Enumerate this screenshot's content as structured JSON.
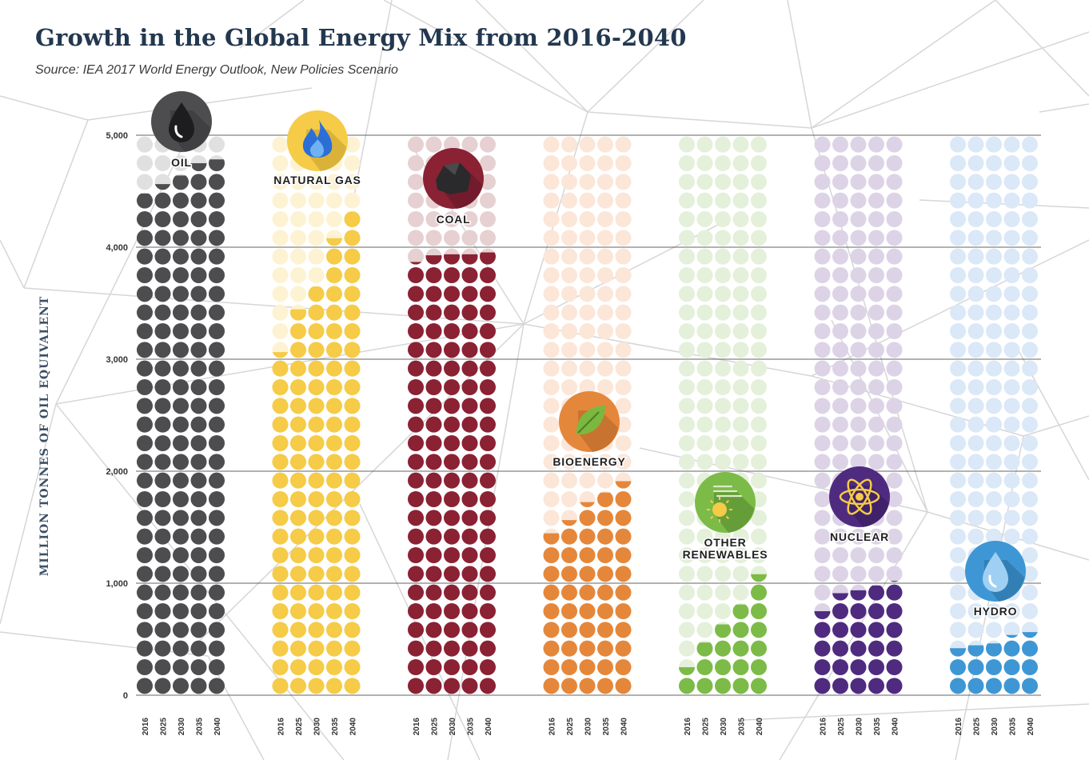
{
  "header": {
    "title": "Growth in the Global Energy Mix from 2016-2040",
    "subtitle": "Source: IEA 2017 World Energy Outlook, New Policies Scenario"
  },
  "chart_data": {
    "type": "bar",
    "title": "Growth in the Global Energy Mix from 2016-2040",
    "subtitle": "Source: IEA 2017 World Energy Outlook, New Policies Scenario",
    "ylabel": "MILLION TONNES OF OIL EQUIVALENT",
    "ylim": [
      0,
      5000
    ],
    "yticks": [
      0,
      1000,
      2000,
      3000,
      4000,
      5000
    ],
    "ytick_labels": [
      "0",
      "1,000",
      "2,000",
      "3,000",
      "4,000",
      "5,000"
    ],
    "grid": true,
    "legend": "none",
    "years": [
      "2016",
      "2025",
      "2030",
      "2035",
      "2040"
    ],
    "series": [
      {
        "name": "OIL",
        "color": "#4d4d4f",
        "light": "#e0e0e1",
        "icon": "oil-drop-icon",
        "values": [
          4490,
          4560,
          4650,
          4750,
          4790
        ]
      },
      {
        "name": "NATURAL GAS",
        "color": "#f5cb47",
        "light": "#fdf2d2",
        "icon": "gas-flame-icon",
        "values": [
          3060,
          3450,
          3660,
          4080,
          4330
        ]
      },
      {
        "name": "COAL",
        "color": "#8a2234",
        "light": "#e6d0d2",
        "icon": "coal-lump-icon",
        "values": [
          3860,
          3930,
          3940,
          3940,
          3960
        ]
      },
      {
        "name": "BIOENERGY",
        "color": "#e5873b",
        "light": "#fbe6d8",
        "icon": "leaf-icon",
        "values": [
          1450,
          1560,
          1720,
          1820,
          1910
        ]
      },
      {
        "name": "OTHER RENEWABLES",
        "color": "#7cbb47",
        "light": "#e4f0da",
        "icon": "wind-sun-icon",
        "values": [
          250,
          480,
          640,
          820,
          1080
        ]
      },
      {
        "name": "NUCLEAR",
        "color": "#4f2b80",
        "light": "#ddd3e7",
        "icon": "atom-icon",
        "values": [
          750,
          910,
          940,
          990,
          1010
        ]
      },
      {
        "name": "HYDRO",
        "color": "#3e97d4",
        "light": "#dae8f7",
        "icon": "water-drop-icon",
        "values": [
          420,
          450,
          470,
          530,
          560
        ]
      }
    ]
  }
}
